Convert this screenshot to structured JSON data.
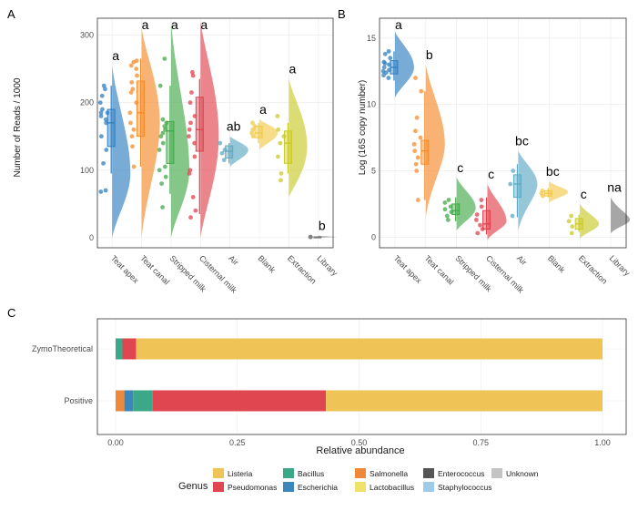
{
  "colors": {
    "Teat apex": "#2f7fc1",
    "Teat canal": "#f58b2a",
    "Stripped milk": "#43a84a",
    "Cisternal milk": "#e0424d",
    "Air": "#5ea9c4",
    "Blank": "#f2c94c",
    "Extraction": "#c9c92a",
    "Library": "#777777"
  },
  "chart_data": [
    {
      "panel": "A",
      "type": "raincloud",
      "ylabel": "Number of Reads / 1000",
      "ylim": [
        -15,
        325
      ],
      "yticks": [
        0,
        100,
        200,
        300
      ],
      "categories": [
        "Teat apex",
        "Teat canal",
        "Stripped milk",
        "Cisternal milk",
        "Air",
        "Blank",
        "Extraction",
        "Library"
      ],
      "box": [
        {
          "min": 95,
          "q1": 135,
          "median": 170,
          "q3": 190,
          "max": 225
        },
        {
          "min": 105,
          "q1": 150,
          "median": 185,
          "q3": 232,
          "max": 265
        },
        {
          "min": 65,
          "q1": 110,
          "median": 158,
          "q3": 172,
          "max": 225
        },
        {
          "min": 35,
          "q1": 128,
          "median": 160,
          "q3": 208,
          "max": 235
        },
        {
          "min": 110,
          "q1": 118,
          "median": 128,
          "q3": 136,
          "max": 140
        },
        {
          "min": 140,
          "q1": 148,
          "median": 155,
          "q3": 165,
          "max": 170
        },
        {
          "min": 95,
          "q1": 110,
          "median": 140,
          "q3": 158,
          "max": 170
        },
        {
          "min": 1,
          "q1": 1,
          "median": 1,
          "q3": 1,
          "max": 2
        }
      ],
      "points": [
        [
          70,
          68,
          110,
          130,
          150,
          170,
          180,
          185,
          190,
          175,
          200,
          210,
          220,
          225,
          185
        ],
        [
          105,
          135,
          150,
          160,
          170,
          185,
          200,
          215,
          220,
          240,
          255,
          260,
          262,
          250,
          230
        ],
        [
          45,
          80,
          90,
          100,
          105,
          130,
          140,
          150,
          155,
          160,
          165,
          170,
          175,
          265,
          225
        ],
        [
          30,
          40,
          60,
          95,
          100,
          120,
          140,
          150,
          160,
          170,
          180,
          200,
          215,
          240,
          245
        ],
        [
          115,
          125,
          130,
          140
        ],
        [
          150,
          155,
          160,
          165,
          170
        ],
        [
          85,
          95,
          120,
          140,
          150,
          160,
          180
        ],
        [
          1,
          1
        ]
      ],
      "density": [
        [
          0,
          40,
          95,
          185,
          255
        ],
        [
          0,
          80,
          170,
          260,
          310
        ],
        [
          0,
          40,
          100,
          215,
          320
        ],
        [
          0,
          55,
          150,
          260,
          320
        ],
        [
          105,
          115,
          130,
          142,
          150
        ],
        [
          130,
          140,
          155,
          168,
          175
        ],
        [
          60,
          80,
          135,
          200,
          235
        ],
        [
          0,
          0.5,
          1,
          1.5,
          3
        ]
      ],
      "letters": [
        "a",
        "a",
        "a",
        "a",
        "ab",
        "a",
        "a",
        "b"
      ]
    },
    {
      "panel": "B",
      "type": "raincloud",
      "ylabel": "Log (16S copy number)",
      "ylim": [
        -0.8,
        16.5
      ],
      "yticks": [
        0,
        5,
        10,
        15
      ],
      "categories": [
        "Teat apex",
        "Teat canal",
        "Stripped milk",
        "Cisternal milk",
        "Air",
        "Blank",
        "Extraction",
        "Library"
      ],
      "box": [
        {
          "min": 11.8,
          "q1": 12.3,
          "median": 12.8,
          "q3": 13.3,
          "max": 14.0
        },
        {
          "min": 2.8,
          "q1": 5.5,
          "median": 6.5,
          "q3": 7.3,
          "max": 11.0
        },
        {
          "min": 1.2,
          "q1": 1.7,
          "median": 2.0,
          "q3": 2.5,
          "max": 3.0
        },
        {
          "min": 0.2,
          "q1": 0.6,
          "median": 1.0,
          "q3": 2.0,
          "max": 3.0
        },
        {
          "min": 1.5,
          "q1": 3.0,
          "median": 4.0,
          "q3": 4.7,
          "max": 5.5
        },
        {
          "min": 3.0,
          "q1": 3.1,
          "median": 3.3,
          "q3": 3.5,
          "max": 3.7
        },
        {
          "min": 0.4,
          "q1": 0.6,
          "median": 1.0,
          "q3": 1.4,
          "max": 1.7
        },
        null
      ],
      "points": [
        [
          12.0,
          12.2,
          12.4,
          12.6,
          12.8,
          13.0,
          13.2,
          13.5,
          13.8,
          14.0,
          12.5,
          13.1
        ],
        [
          2.8,
          5.0,
          5.5,
          6.0,
          6.5,
          7.0,
          7.5,
          8.0,
          9.0,
          11.0,
          12.0
        ],
        [
          1.3,
          1.6,
          1.9,
          2.1,
          2.3,
          2.6,
          2.8
        ],
        [
          0.3,
          0.6,
          0.9,
          1.3,
          1.7,
          2.3,
          2.8
        ],
        [
          1.6,
          4.0,
          5.0
        ],
        [
          3.1,
          3.3,
          3.5
        ],
        [
          0.3,
          0.8,
          1.2,
          1.6
        ],
        []
      ],
      "density": [
        [
          10.5,
          11.5,
          12.8,
          14.5,
          15.5
        ],
        [
          1.5,
          4.5,
          7.0,
          10.5,
          13.0
        ],
        [
          0.5,
          1.2,
          2.2,
          3.5,
          4.5
        ],
        [
          -0.2,
          0.5,
          1.2,
          2.8,
          4.0
        ],
        [
          0.5,
          2.5,
          4.0,
          5.5,
          6.5
        ],
        [
          2.6,
          3.0,
          3.4,
          3.8,
          4.2
        ],
        [
          -0.1,
          0.4,
          1.0,
          1.7,
          2.5
        ],
        [
          0.3,
          0.8,
          1.3,
          2.0,
          3.0
        ]
      ],
      "letters": [
        "a",
        "b",
        "c",
        "c",
        "bc",
        "bc",
        "c",
        "na"
      ]
    },
    {
      "panel": "C",
      "type": "stacked_bar_horizontal",
      "xlabel": "Relative abundance",
      "xlim": [
        0,
        1
      ],
      "xticks": [
        "0.00",
        "0.25",
        "0.50",
        "0.75",
        "1.00"
      ],
      "categories": [
        "ZymoTheoretical",
        "Positive"
      ],
      "series": [
        {
          "name": "Salmonella",
          "color": "#f0883a",
          "values": [
            0,
            0.018
          ]
        },
        {
          "name": "Escherichia",
          "color": "#3b86bd",
          "values": [
            0,
            0.018
          ]
        },
        {
          "name": "Bacillus",
          "color": "#3aa889",
          "values": [
            0.014,
            0.04
          ]
        },
        {
          "name": "Pseudomonas",
          "color": "#e0464f",
          "values": [
            0.028,
            0.356
          ]
        },
        {
          "name": "Listeria",
          "color": "#efc356",
          "values": [
            0.958,
            0.568
          ]
        }
      ],
      "legend": {
        "title": "Genus",
        "entries": [
          {
            "name": "Listeria",
            "color": "#efc356"
          },
          {
            "name": "Pseudomonas",
            "color": "#e0464f"
          },
          {
            "name": "Bacillus",
            "color": "#3aa889"
          },
          {
            "name": "Escherichia",
            "color": "#3b86bd"
          },
          {
            "name": "Salmonella",
            "color": "#f0883a"
          },
          {
            "name": "Lactobacillus",
            "color": "#efe16a"
          },
          {
            "name": "Enterococcus",
            "color": "#555555"
          },
          {
            "name": "Staphylococcus",
            "color": "#9dcbe9"
          },
          {
            "name": "Unknown",
            "color": "#c4c4c4"
          }
        ]
      }
    }
  ]
}
